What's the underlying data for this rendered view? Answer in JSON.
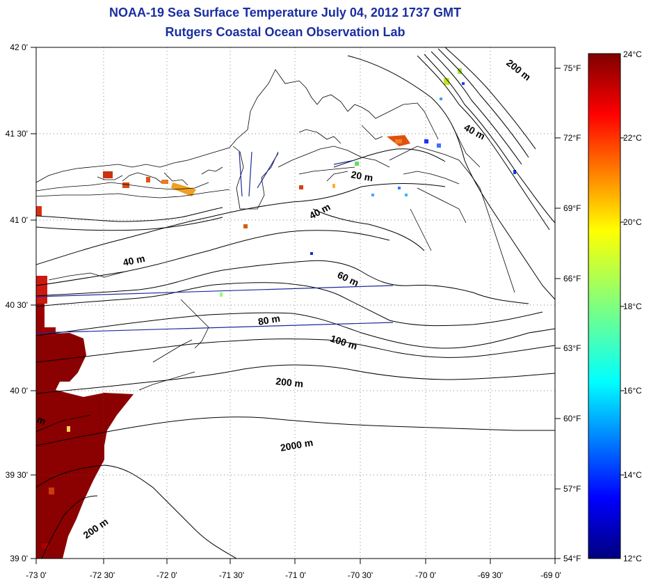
{
  "title": "NOAA-19 Sea Surface Temperature July 04, 2012 1737 GMT",
  "subtitle": "Rutgers Coastal Ocean Observation Lab",
  "lat_labels": [
    "42 0'",
    "41 30'",
    "41 0'",
    "40 30'",
    "40 0'",
    "39 30'",
    "39 0'"
  ],
  "lon_labels": [
    "-73 0'",
    "-72 30'",
    "-72 0'",
    "-71 30'",
    "-71 0'",
    "-70 30'",
    "-70 0'",
    "-69 30'",
    "-69 0'"
  ],
  "colorbar": {
    "celsius": [
      "24°C",
      "22°C",
      "20°C",
      "18°C",
      "16°C",
      "14°C",
      "12°C"
    ],
    "fahrenheit": [
      "75°F",
      "72°F",
      "69°F",
      "66°F",
      "63°F",
      "60°F",
      "57°F",
      "54°F"
    ]
  },
  "contour_labels": [
    "200 m",
    "40 m",
    "20 m",
    "40 m",
    "40 m",
    "60 m",
    "80 m",
    "100 m",
    "200 m",
    "2000 m",
    "200 m",
    "m"
  ]
}
